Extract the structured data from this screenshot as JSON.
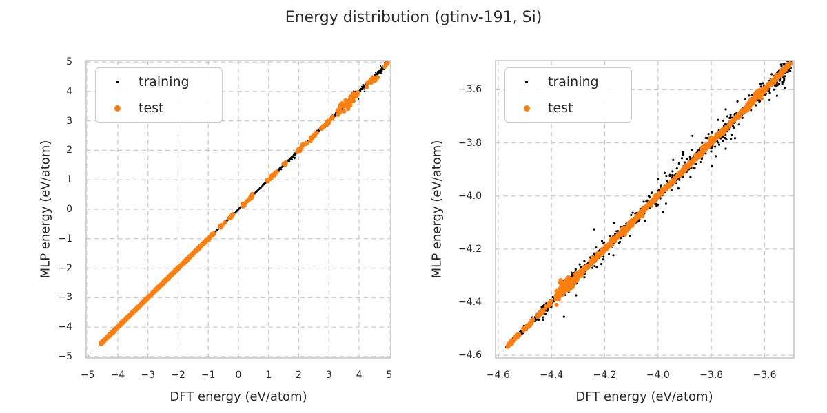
{
  "title": "Energy distribution (gtinv-191, Si)",
  "colors": {
    "background": "#ffffff",
    "text": "#262626",
    "grid": "#cccccc",
    "spine": "#c7c7c7",
    "identity_line": "#a3a3a3",
    "training": "#000000",
    "test": "#ff7f0e"
  },
  "chart_data": {
    "type": "scatter",
    "title": "Energy distribution (gtinv-191, Si)",
    "grid": true,
    "grid_style": "dashed",
    "plots": [
      {
        "id": "full-range-parity",
        "xlabel": "DFT energy (eV/atom)",
        "ylabel": "MLP energy (eV/atom)",
        "xlim": [
          -5.05,
          5.05
        ],
        "ylim": [
          -5.05,
          5.05
        ],
        "identity_line": {
          "show": true,
          "style": "dotted",
          "color": "#a3a3a3"
        },
        "x_ticks": {
          "values": [
            -5,
            -4,
            -3,
            -2,
            -1,
            0,
            1,
            2,
            3,
            4,
            5
          ],
          "labels": [
            "−5",
            "−4",
            "−3",
            "−2",
            "−1",
            "0",
            "1",
            "2",
            "3",
            "4",
            "5"
          ]
        },
        "y_ticks": {
          "values": [
            -5,
            -4,
            -3,
            -2,
            -1,
            0,
            1,
            2,
            3,
            4,
            5
          ],
          "labels": [
            "−5",
            "−4",
            "−3",
            "−2",
            "−1",
            "0",
            "1",
            "2",
            "3",
            "4",
            "5"
          ]
        },
        "legend": {
          "position": "upper left",
          "items": [
            {
              "label": "training",
              "color": "#000000",
              "marker_size": 4
            },
            {
              "label": "test",
              "color": "#ff7f0e",
              "marker_size": 9
            }
          ]
        },
        "series": [
          {
            "name": "training",
            "color": "#000000",
            "marker_radius": 1.2,
            "seed": 11,
            "band_segments": [
              [
                -4.57,
                -1.0,
                500,
                0.008,
                0
              ],
              [
                -1.0,
                1.0,
                320,
                0.01,
                0
              ],
              [
                1.0,
                3.0,
                380,
                0.016,
                0
              ],
              [
                3.0,
                4.95,
                320,
                0.022,
                0
              ],
              [
                1.2,
                4.9,
                110,
                0.05,
                0
              ],
              [
                3.3,
                4.9,
                45,
                0.085,
                0
              ],
              [
                4.55,
                4.95,
                30,
                0.03,
                0
              ]
            ]
          },
          {
            "name": "test",
            "color": "#ff7f0e",
            "marker_radius": 3.3,
            "seed": 22,
            "band_segments": [
              [
                -4.57,
                -1.05,
                620,
                0.012,
                0
              ],
              [
                -1.0,
                -0.78,
                12,
                0.025,
                0
              ],
              [
                -0.62,
                -0.45,
                8,
                0.02,
                0
              ],
              [
                -0.32,
                -0.18,
                6,
                0.02,
                0
              ],
              [
                0.12,
                0.48,
                14,
                0.03,
                0
              ],
              [
                0.95,
                1.32,
                16,
                0.03,
                0
              ],
              [
                1.44,
                1.58,
                5,
                0.02,
                0
              ],
              [
                1.88,
                2.28,
                14,
                0.03,
                0
              ],
              [
                2.38,
                2.62,
                10,
                0.03,
                0
              ],
              [
                2.72,
                3.12,
                16,
                0.035,
                0
              ],
              [
                3.28,
                3.82,
                26,
                0.085,
                0
              ],
              [
                3.55,
                3.72,
                6,
                0.05,
                -0.12
              ],
              [
                3.88,
                4.02,
                5,
                0.03,
                0
              ],
              [
                4.22,
                4.48,
                9,
                0.045,
                0
              ],
              [
                4.5,
                4.62,
                5,
                0.05,
                -0.08
              ],
              [
                4.82,
                4.95,
                5,
                0.03,
                0
              ]
            ]
          }
        ]
      },
      {
        "id": "zoomed-low-energy-parity",
        "xlabel": "DFT energy (eV/atom)",
        "ylabel": "MLP energy (eV/atom)",
        "xlim": [
          -4.61,
          -3.49
        ],
        "ylim": [
          -4.61,
          -3.49
        ],
        "identity_line": {
          "show": true,
          "style": "dotted",
          "color": "#a3a3a3"
        },
        "x_ticks": {
          "values": [
            -4.6,
            -4.4,
            -4.2,
            -4.0,
            -3.8,
            -3.6
          ],
          "labels": [
            "−4.6",
            "−4.4",
            "−4.2",
            "−4.0",
            "−3.8",
            "−3.6"
          ]
        },
        "y_ticks": {
          "values": [
            -4.6,
            -4.4,
            -4.2,
            -4.0,
            -3.8,
            -3.6
          ],
          "labels": [
            "−4.6",
            "−4.4",
            "−4.2",
            "−4.0",
            "−3.8",
            "−3.6"
          ]
        },
        "legend": {
          "position": "upper left",
          "items": [
            {
              "label": "training",
              "color": "#000000",
              "marker_size": 4
            },
            {
              "label": "test",
              "color": "#ff7f0e",
              "marker_size": 9
            }
          ]
        },
        "series": [
          {
            "name": "training",
            "color": "#000000",
            "marker_radius": 1.6,
            "seed": 33,
            "band_segments": [
              [
                -4.555,
                -3.5,
                850,
                0.006,
                0
              ],
              [
                -4.45,
                -3.5,
                330,
                0.015,
                0
              ],
              [
                -4.4,
                -3.52,
                130,
                0.03,
                0
              ],
              [
                -4.57,
                -4.5,
                60,
                0.0035,
                0
              ],
              [
                -4.38,
                -4.29,
                45,
                0.01,
                0.012
              ],
              [
                -4.05,
                -3.7,
                40,
                0.04,
                0
              ],
              [
                -3.62,
                -3.5,
                40,
                0.018,
                0
              ],
              [
                -3.78,
                -3.745,
                3,
                0.008,
                0.05
              ],
              [
                -3.6,
                -3.52,
                15,
                0.02,
                -0.02
              ]
            ]
          },
          {
            "name": "test",
            "color": "#ff7f0e",
            "marker_radius": 3.0,
            "seed": 44,
            "band_segments": [
              [
                -4.565,
                -4.52,
                45,
                0.0035,
                0
              ],
              [
                -4.51,
                -4.468,
                28,
                0.0035,
                0
              ],
              [
                -4.458,
                -4.43,
                18,
                0.0035,
                0
              ],
              [
                -4.425,
                -4.398,
                12,
                0.004,
                0
              ],
              [
                -4.385,
                -4.3,
                95,
                0.009,
                0
              ],
              [
                -4.372,
                -4.335,
                25,
                0.01,
                0.016
              ],
              [
                -4.355,
                -4.318,
                18,
                0.009,
                -0.013
              ],
              [
                -4.3,
                -3.5,
                820,
                0.0045,
                0
              ],
              [
                -4.13,
                -4.095,
                20,
                0.007,
                -0.008
              ],
              [
                -3.84,
                -3.78,
                25,
                0.008,
                0.008
              ],
              [
                -3.67,
                -3.6,
                30,
                0.009,
                0.006
              ],
              [
                -3.57,
                -3.515,
                20,
                0.007,
                0
              ]
            ]
          }
        ]
      }
    ]
  }
}
